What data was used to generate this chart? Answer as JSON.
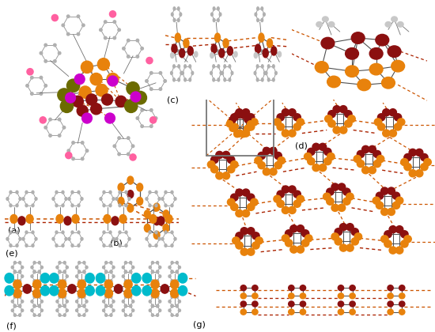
{
  "figure_width": 5.5,
  "figure_height": 4.2,
  "dpi": 100,
  "background_color": "#ffffff",
  "colors": {
    "orange": "#E8820C",
    "dark_red": "#8B1010",
    "olive": "#6B6B00",
    "magenta": "#CC00CC",
    "cyan": "#00BBCC",
    "gray_atom": "#A8A8A8",
    "light_gray": "#C8C8C8",
    "pink": "#FF60A0",
    "dashed_orange": "#CC5500",
    "dashed_red": "#AA2200",
    "bond_gray": "#505050",
    "white": "#ffffff"
  },
  "labels": {
    "a": "(a)",
    "b": "(b)",
    "c": "(c)",
    "d": "(d)",
    "e": "(e)",
    "f": "(f)",
    "g": "(g)"
  }
}
